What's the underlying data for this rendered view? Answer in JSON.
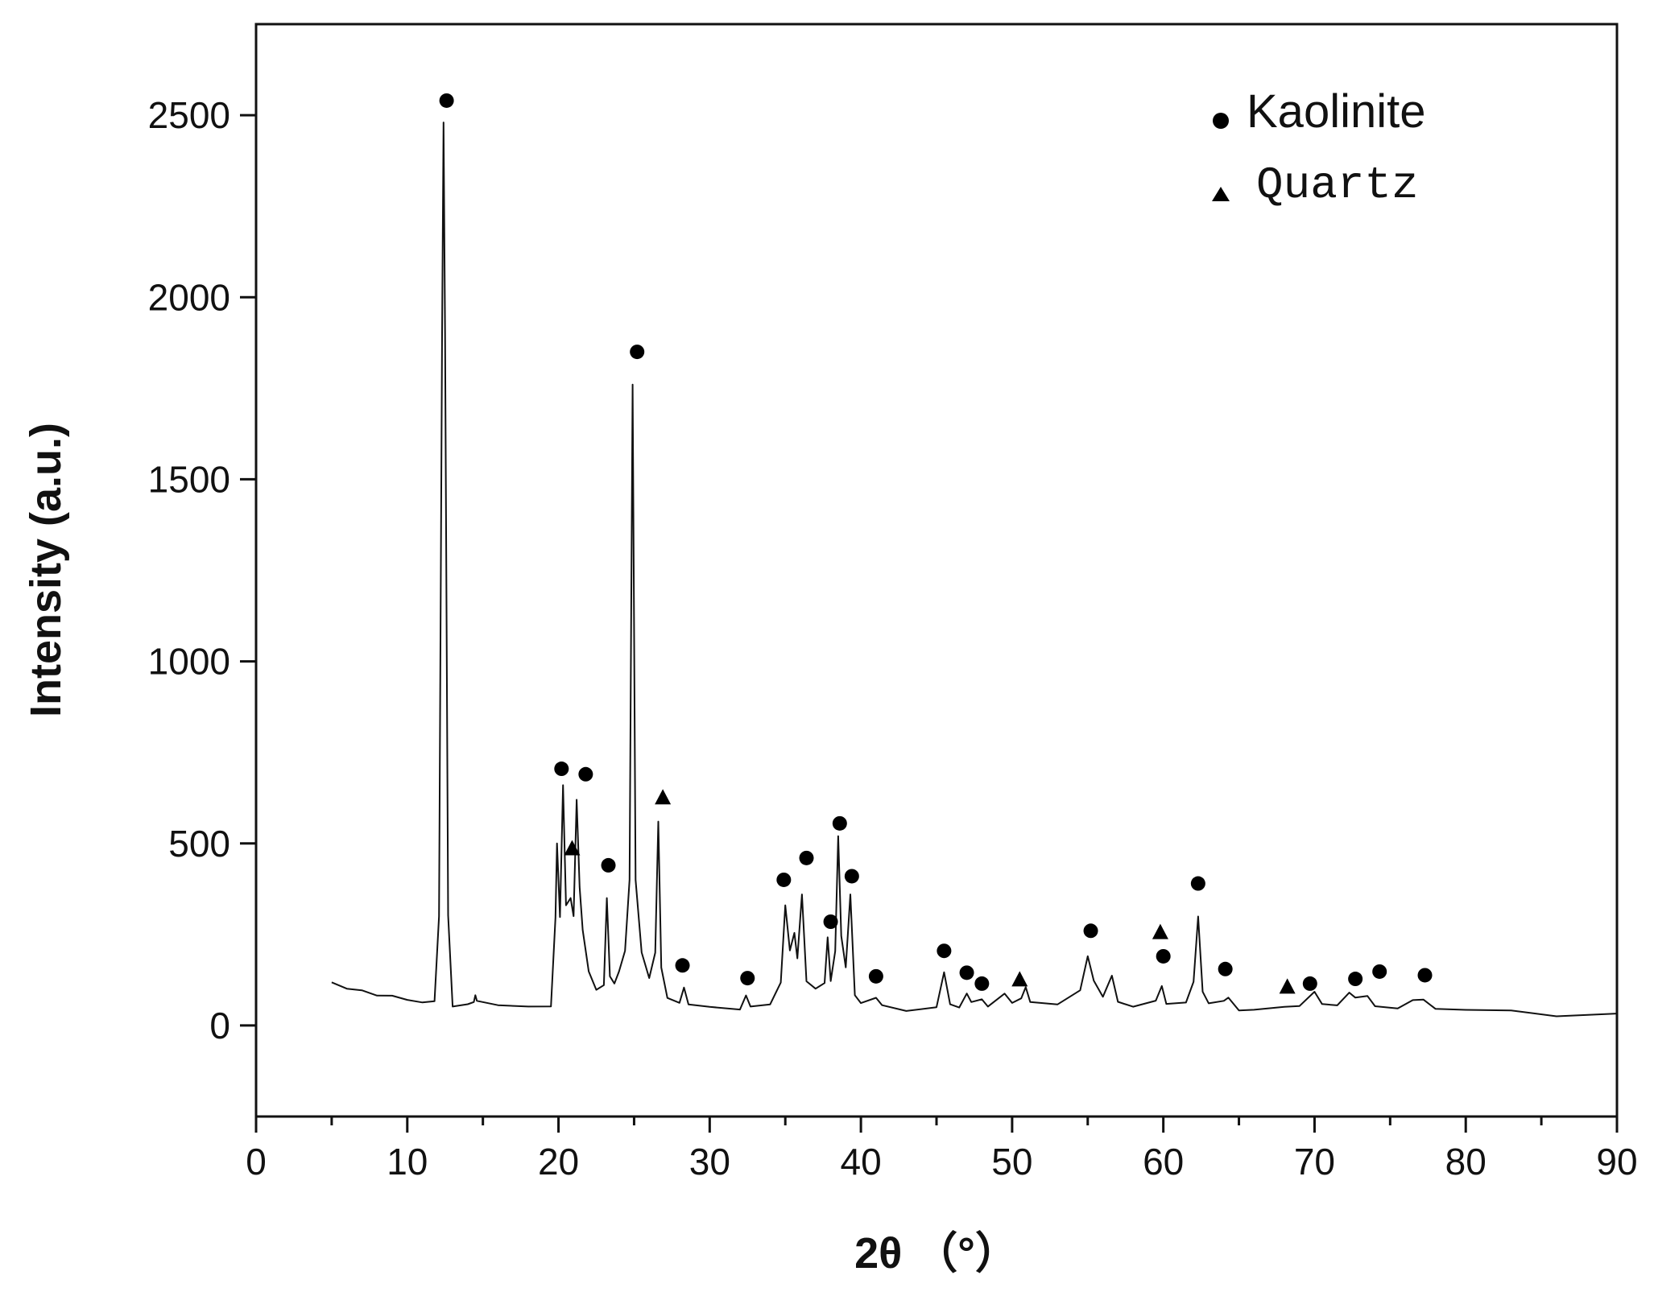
{
  "chart_data": {
    "type": "line",
    "xlabel": "2θ （°）",
    "ylabel": "Intensity (a.u.)",
    "xlim": [
      0,
      90
    ],
    "ylim": [
      -250,
      2750
    ],
    "x_ticks": [
      "0",
      "10",
      "20",
      "30",
      "40",
      "50",
      "60",
      "70",
      "80",
      "90"
    ],
    "y_ticks": [
      "0",
      "500",
      "1000",
      "1500",
      "2000",
      "2500"
    ],
    "x_tick_values": [
      0,
      10,
      20,
      30,
      40,
      50,
      60,
      70,
      80,
      90
    ],
    "y_tick_values": [
      0,
      500,
      1000,
      1500,
      2000,
      2500
    ],
    "grid": false,
    "legend_position": "top-right",
    "legend": [
      {
        "symbol": "circle",
        "label": "Kaolinite"
      },
      {
        "symbol": "triangle",
        "label": "Quartz"
      }
    ],
    "series": [
      {
        "color": "#111111",
        "points": [
          [
            5.0,
            120
          ],
          [
            6.0,
            100
          ],
          [
            7.0,
            88
          ],
          [
            8.0,
            80
          ],
          [
            9.0,
            74
          ],
          [
            10.0,
            70
          ],
          [
            11.0,
            66
          ],
          [
            11.8,
            68
          ],
          [
            12.1,
            300
          ],
          [
            12.3,
            1900
          ],
          [
            12.4,
            2480
          ],
          [
            12.5,
            1900
          ],
          [
            12.7,
            300
          ],
          [
            13.0,
            62
          ],
          [
            14.0,
            60
          ],
          [
            14.4,
            60
          ],
          [
            14.5,
            90
          ],
          [
            14.6,
            60
          ],
          [
            16.0,
            55
          ],
          [
            18.0,
            50
          ],
          [
            19.5,
            50
          ],
          [
            19.8,
            300
          ],
          [
            19.9,
            500
          ],
          [
            20.1,
            300
          ],
          [
            20.3,
            660
          ],
          [
            20.5,
            330
          ],
          [
            20.8,
            350
          ],
          [
            21.0,
            300
          ],
          [
            21.2,
            620
          ],
          [
            21.4,
            380
          ],
          [
            21.6,
            260
          ],
          [
            22.0,
            150
          ],
          [
            22.5,
            100
          ],
          [
            23.0,
            120
          ],
          [
            23.2,
            350
          ],
          [
            23.4,
            130
          ],
          [
            23.7,
            120
          ],
          [
            24.0,
            150
          ],
          [
            24.4,
            200
          ],
          [
            24.7,
            400
          ],
          [
            24.9,
            1760
          ],
          [
            25.1,
            400
          ],
          [
            25.5,
            200
          ],
          [
            26.0,
            130
          ],
          [
            26.4,
            200
          ],
          [
            26.6,
            560
          ],
          [
            26.8,
            150
          ],
          [
            27.2,
            80
          ],
          [
            28.0,
            60
          ],
          [
            28.3,
            100
          ],
          [
            28.6,
            60
          ],
          [
            30.0,
            50
          ],
          [
            32.0,
            45
          ],
          [
            32.4,
            80
          ],
          [
            32.7,
            45
          ],
          [
            34.0,
            60
          ],
          [
            34.7,
            120
          ],
          [
            35.0,
            330
          ],
          [
            35.3,
            200
          ],
          [
            35.6,
            250
          ],
          [
            35.8,
            180
          ],
          [
            36.1,
            360
          ],
          [
            36.4,
            120
          ],
          [
            37.0,
            100
          ],
          [
            37.6,
            120
          ],
          [
            37.8,
            240
          ],
          [
            38.0,
            120
          ],
          [
            38.3,
            200
          ],
          [
            38.5,
            520
          ],
          [
            38.7,
            250
          ],
          [
            39.0,
            150
          ],
          [
            39.3,
            360
          ],
          [
            39.6,
            90
          ],
          [
            40.0,
            60
          ],
          [
            41.0,
            70
          ],
          [
            41.4,
            50
          ],
          [
            43.0,
            45
          ],
          [
            45.0,
            60
          ],
          [
            45.5,
            150
          ],
          [
            45.9,
            60
          ],
          [
            46.5,
            55
          ],
          [
            47.0,
            90
          ],
          [
            47.3,
            55
          ],
          [
            48.0,
            70
          ],
          [
            48.4,
            55
          ],
          [
            49.5,
            80
          ],
          [
            50.0,
            60
          ],
          [
            50.6,
            80
          ],
          [
            50.9,
            110
          ],
          [
            51.2,
            55
          ],
          [
            53.0,
            60
          ],
          [
            54.5,
            100
          ],
          [
            55.0,
            200
          ],
          [
            55.4,
            120
          ],
          [
            56.0,
            80
          ],
          [
            56.6,
            130
          ],
          [
            57.0,
            70
          ],
          [
            58.0,
            50
          ],
          [
            59.5,
            60
          ],
          [
            59.9,
            110
          ],
          [
            60.2,
            60
          ],
          [
            61.5,
            60
          ],
          [
            62.0,
            120
          ],
          [
            62.3,
            300
          ],
          [
            62.6,
            100
          ],
          [
            63.0,
            60
          ],
          [
            64.0,
            70
          ],
          [
            64.3,
            80
          ],
          [
            65.0,
            50
          ],
          [
            66.0,
            45
          ],
          [
            68.0,
            50
          ],
          [
            69.0,
            50
          ],
          [
            70.0,
            90
          ],
          [
            70.5,
            55
          ],
          [
            71.5,
            50
          ],
          [
            72.3,
            90
          ],
          [
            72.7,
            70
          ],
          [
            73.5,
            85
          ],
          [
            74.0,
            55
          ],
          [
            75.5,
            55
          ],
          [
            76.5,
            75
          ],
          [
            77.2,
            80
          ],
          [
            78.0,
            45
          ],
          [
            80.0,
            40
          ],
          [
            83.0,
            35
          ],
          [
            86.0,
            28
          ],
          [
            90.0,
            30
          ]
        ]
      }
    ],
    "annotations": [
      {
        "symbol": "circle",
        "phase": "Kaolinite",
        "x": 12.6,
        "y": 2540
      },
      {
        "symbol": "circle",
        "phase": "Kaolinite",
        "x": 20.2,
        "y": 705
      },
      {
        "symbol": "circle",
        "phase": "Kaolinite",
        "x": 21.8,
        "y": 690
      },
      {
        "symbol": "triangle",
        "phase": "Quartz",
        "x": 20.9,
        "y": 485
      },
      {
        "symbol": "circle",
        "phase": "Kaolinite",
        "x": 23.3,
        "y": 440
      },
      {
        "symbol": "circle",
        "phase": "Kaolinite",
        "x": 25.2,
        "y": 1850
      },
      {
        "symbol": "triangle",
        "phase": "Quartz",
        "x": 26.9,
        "y": 625
      },
      {
        "symbol": "circle",
        "phase": "Kaolinite",
        "x": 28.2,
        "y": 165
      },
      {
        "symbol": "circle",
        "phase": "Kaolinite",
        "x": 32.5,
        "y": 130
      },
      {
        "symbol": "circle",
        "phase": "Kaolinite",
        "x": 34.9,
        "y": 400
      },
      {
        "symbol": "circle",
        "phase": "Kaolinite",
        "x": 36.4,
        "y": 460
      },
      {
        "symbol": "circle",
        "phase": "Kaolinite",
        "x": 38.0,
        "y": 285
      },
      {
        "symbol": "circle",
        "phase": "Kaolinite",
        "x": 38.6,
        "y": 555
      },
      {
        "symbol": "circle",
        "phase": "Kaolinite",
        "x": 39.4,
        "y": 410
      },
      {
        "symbol": "circle",
        "phase": "Kaolinite",
        "x": 41.0,
        "y": 135
      },
      {
        "symbol": "circle",
        "phase": "Kaolinite",
        "x": 45.5,
        "y": 205
      },
      {
        "symbol": "circle",
        "phase": "Kaolinite",
        "x": 47.0,
        "y": 145
      },
      {
        "symbol": "circle",
        "phase": "Kaolinite",
        "x": 48.0,
        "y": 115
      },
      {
        "symbol": "triangle",
        "phase": "Quartz",
        "x": 50.5,
        "y": 125
      },
      {
        "symbol": "circle",
        "phase": "Kaolinite",
        "x": 55.2,
        "y": 260
      },
      {
        "symbol": "triangle",
        "phase": "Quartz",
        "x": 59.8,
        "y": 255
      },
      {
        "symbol": "circle",
        "phase": "Kaolinite",
        "x": 60.0,
        "y": 190
      },
      {
        "symbol": "circle",
        "phase": "Kaolinite",
        "x": 62.3,
        "y": 390
      },
      {
        "symbol": "circle",
        "phase": "Kaolinite",
        "x": 64.1,
        "y": 155
      },
      {
        "symbol": "triangle",
        "phase": "Quartz",
        "x": 68.2,
        "y": 105
      },
      {
        "symbol": "circle",
        "phase": "Kaolinite",
        "x": 69.7,
        "y": 115
      },
      {
        "symbol": "circle",
        "phase": "Kaolinite",
        "x": 72.7,
        "y": 128
      },
      {
        "symbol": "circle",
        "phase": "Kaolinite",
        "x": 74.3,
        "y": 148
      },
      {
        "symbol": "circle",
        "phase": "Kaolinite",
        "x": 77.3,
        "y": 138
      }
    ]
  }
}
